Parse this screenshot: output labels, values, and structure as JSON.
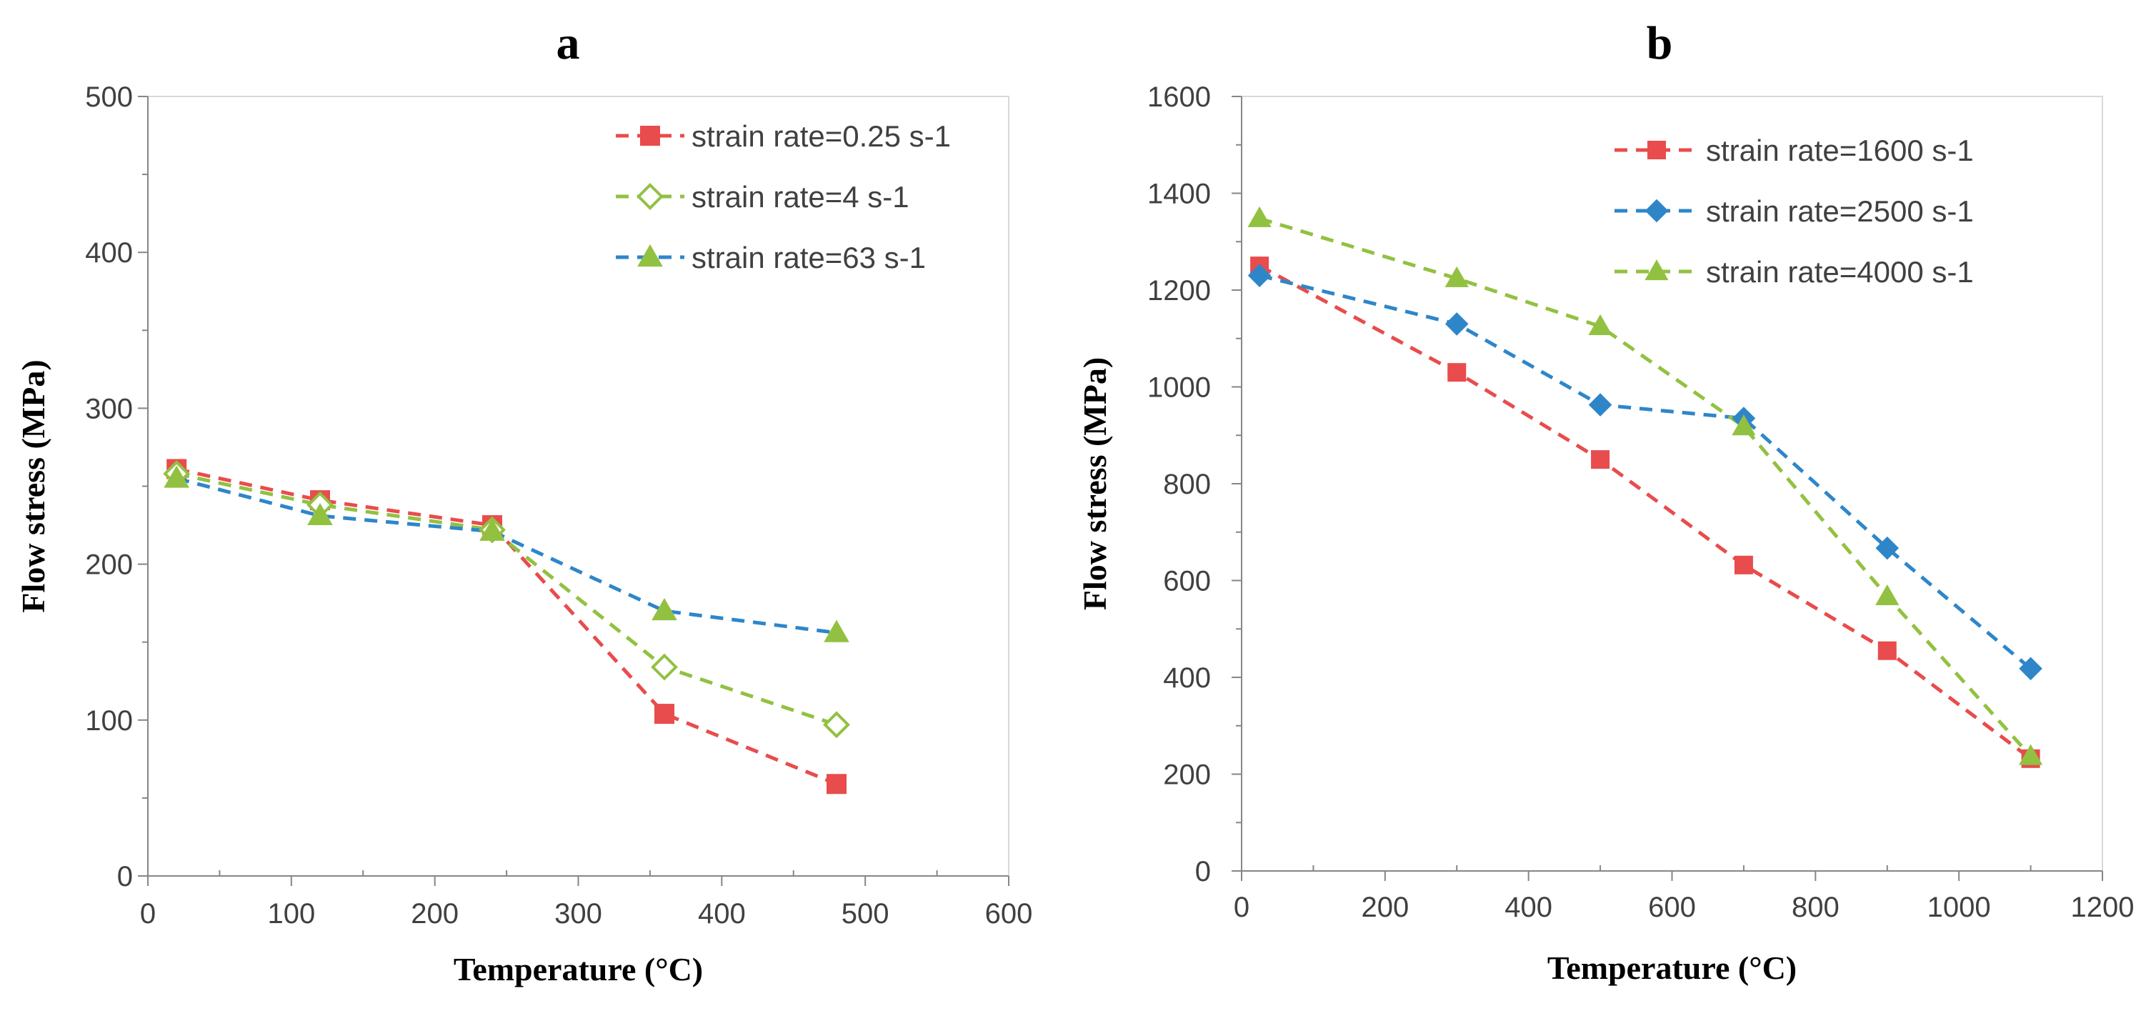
{
  "chart_data": [
    {
      "type": "line",
      "panel_label": "a",
      "xlabel": "Temperature (°C)",
      "ylabel": "Flow stress (MPa)",
      "xlim": [
        0,
        600
      ],
      "ylim": [
        0,
        500
      ],
      "xticks": [
        0,
        100,
        200,
        300,
        400,
        500,
        600
      ],
      "yticks": [
        0,
        100,
        200,
        300,
        400,
        500
      ],
      "legend_position": "top-right",
      "grid": false,
      "x": [
        20,
        120,
        240,
        360,
        480
      ],
      "series": [
        {
          "name": "strain rate=0.25 s-1",
          "line_color": "#e84c4c",
          "marker": "square",
          "marker_fill": "#e84c4c",
          "marker_stroke": "#e84c4c",
          "values": [
            261,
            241,
            225,
            104,
            59
          ]
        },
        {
          "name": "strain rate=4 s-1",
          "line_color": "#92c141",
          "marker": "diamond-open",
          "marker_fill": "#ffffff",
          "marker_stroke": "#92c141",
          "values": [
            258,
            238,
            222,
            134,
            97
          ]
        },
        {
          "name": "strain rate=63 s-1",
          "line_color": "#2e86c9",
          "marker": "triangle",
          "marker_fill": "#92c141",
          "marker_stroke": "#92c141",
          "values": [
            255,
            231,
            221,
            170,
            156
          ]
        }
      ]
    },
    {
      "type": "line",
      "panel_label": "b",
      "xlabel": "Temperature (°C)",
      "ylabel": "Flow stress (MPa)",
      "xlim": [
        0,
        1200
      ],
      "ylim": [
        0,
        1600
      ],
      "xticks": [
        0,
        200,
        400,
        600,
        800,
        1000,
        1200
      ],
      "yticks": [
        0,
        200,
        400,
        600,
        800,
        1000,
        1200,
        1400,
        1600
      ],
      "legend_position": "top-right",
      "grid": false,
      "series": [
        {
          "name": "strain rate=1600 s-1",
          "line_color": "#e84c4c",
          "marker": "square",
          "marker_fill": "#e84c4c",
          "marker_stroke": "#e84c4c",
          "x": [
            25,
            300,
            500,
            700,
            900,
            1100
          ],
          "values": [
            1250,
            1030,
            850,
            632,
            455,
            232
          ]
        },
        {
          "name": "strain rate=2500 s-1",
          "line_color": "#2e86c9",
          "marker": "diamond",
          "marker_fill": "#2e86c9",
          "marker_stroke": "#2e86c9",
          "x": [
            25,
            300,
            500,
            700,
            900,
            1100
          ],
          "values": [
            1230,
            1130,
            963,
            935,
            667,
            418
          ]
        },
        {
          "name": "strain rate=4000 s-1",
          "line_color": "#92c141",
          "marker": "triangle",
          "marker_fill": "#92c141",
          "marker_stroke": "#92c141",
          "x": [
            25,
            300,
            500,
            700,
            900,
            1100
          ],
          "values": [
            1348,
            1224,
            1125,
            918,
            567,
            237
          ]
        }
      ]
    }
  ]
}
